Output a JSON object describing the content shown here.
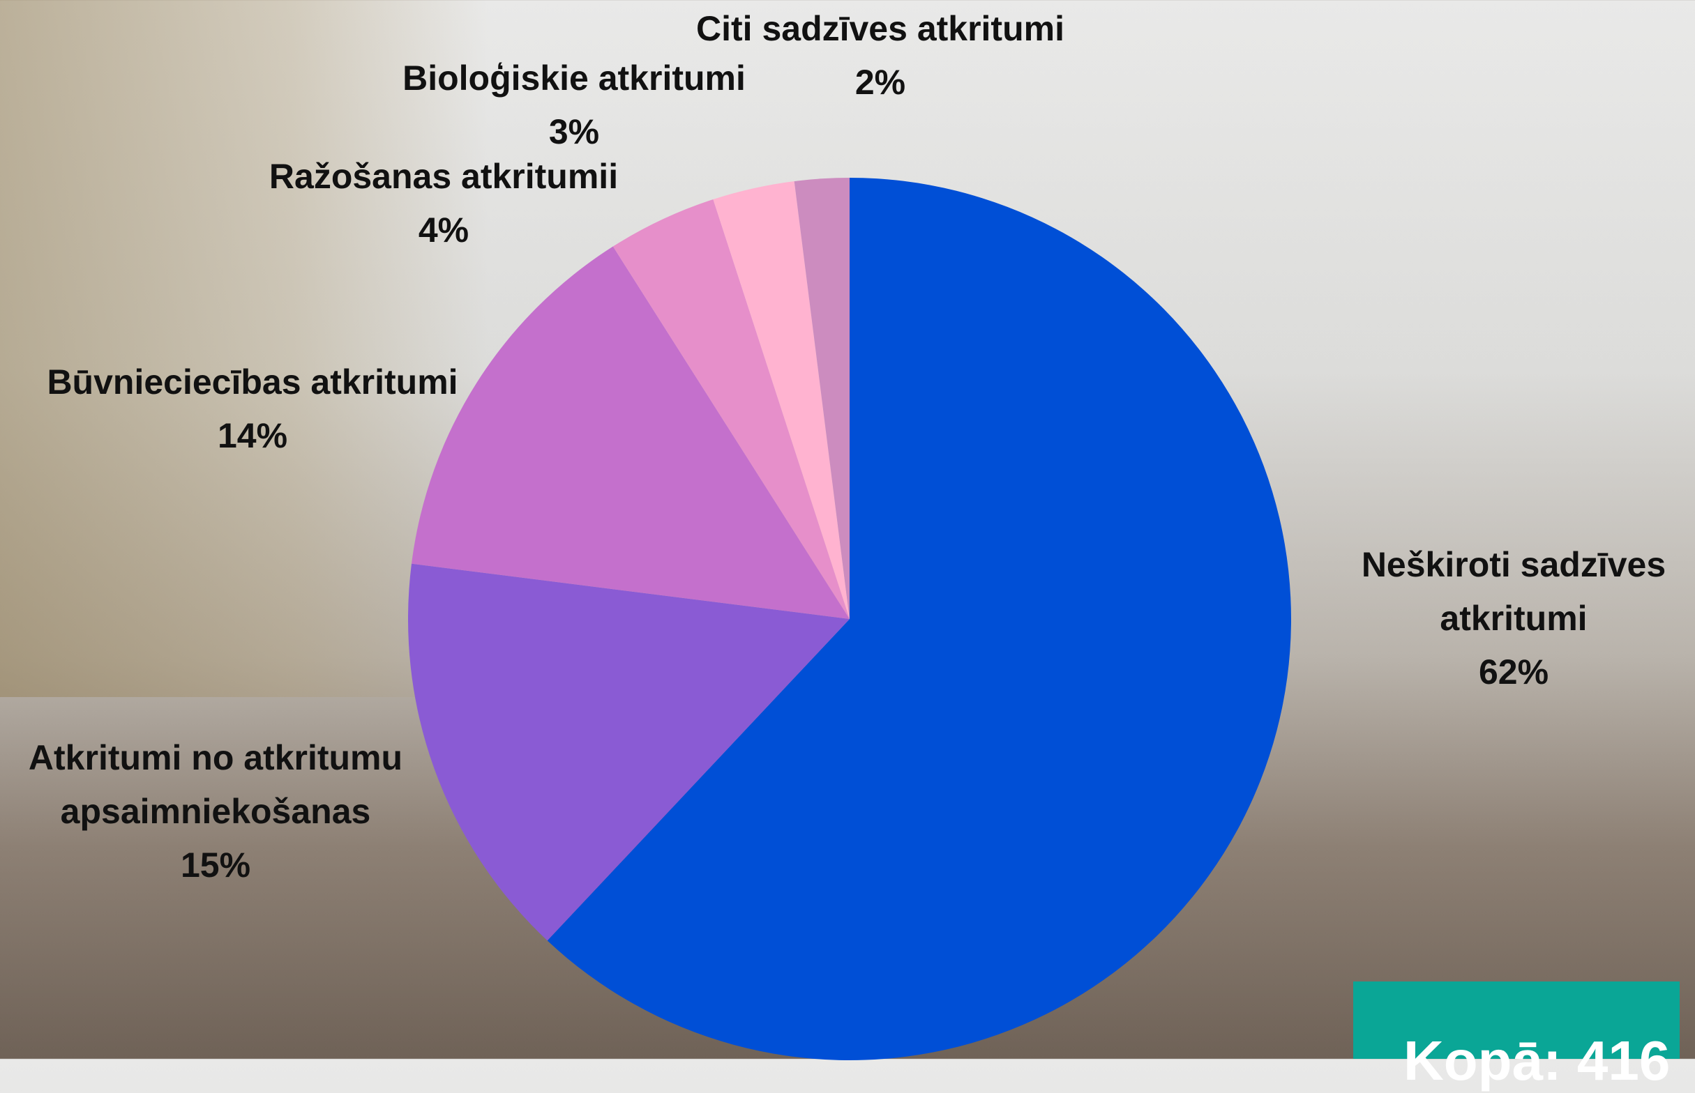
{
  "chart_data": {
    "type": "pie",
    "categories": [
      "Neškiroti sadzīves atkritumi",
      "Atkritumi no atkritumu apsaimniekošanas",
      "Būvnieciecības atkritumi",
      "Ražošanas atkritumii",
      "Bioloģiskie atkritumi",
      "Citi sadzīves atkritumi"
    ],
    "values": [
      62,
      15,
      14,
      4,
      3,
      2
    ],
    "value_labels": [
      "62%",
      "15%",
      "14%",
      "4%",
      "3%",
      "2%"
    ],
    "colors": [
      "#004fd6",
      "#8a5bd4",
      "#c470cc",
      "#e68fca",
      "#ffb3d0",
      "#cc8cbf"
    ],
    "annotation": "Kopā: 416"
  }
}
